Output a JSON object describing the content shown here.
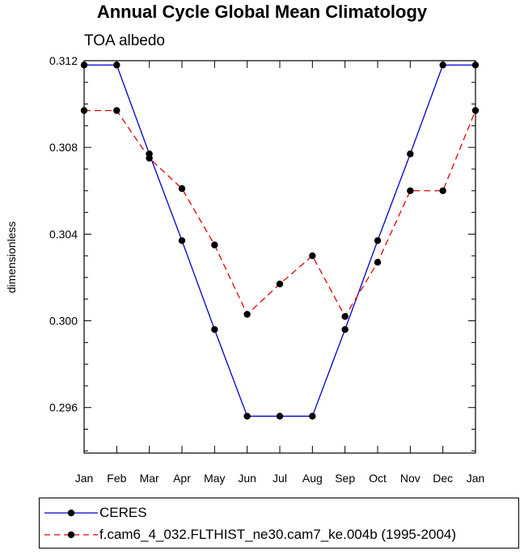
{
  "chart_data": {
    "type": "line",
    "title": "Annual Cycle Global Mean Climatology",
    "subtitle": "TOA albedo",
    "xlabel": "",
    "ylabel": "dimensionless",
    "categories": [
      "Jan",
      "Feb",
      "Mar",
      "Apr",
      "May",
      "Jun",
      "Jul",
      "Aug",
      "Sep",
      "Oct",
      "Nov",
      "Dec",
      "Jan"
    ],
    "ylim": [
      0.2939,
      0.312
    ],
    "yticks": [
      0.296,
      0.3,
      0.304,
      0.308,
      0.312
    ],
    "ytick_labels": [
      "0.296",
      "0.300",
      "0.304",
      "0.308",
      "0.312"
    ],
    "legend_position": "bottom",
    "series": [
      {
        "name": "CERES",
        "color": "#0000cc",
        "dash": "solid",
        "values": [
          0.3118,
          0.3118,
          0.3077,
          0.3037,
          0.2996,
          0.2956,
          0.2956,
          0.2956,
          0.2996,
          0.3037,
          0.3077,
          0.3118,
          0.3118
        ]
      },
      {
        "name": "f.cam6_4_032.FLTHIST_ne30.cam7_ke.004b (1995-2004)",
        "color": "#dd0000",
        "dash": "dashed",
        "values": [
          0.3097,
          0.3097,
          0.3075,
          0.3061,
          0.3035,
          0.3003,
          0.3017,
          0.303,
          0.3002,
          0.3027,
          0.306,
          0.306,
          0.3097
        ]
      }
    ]
  }
}
